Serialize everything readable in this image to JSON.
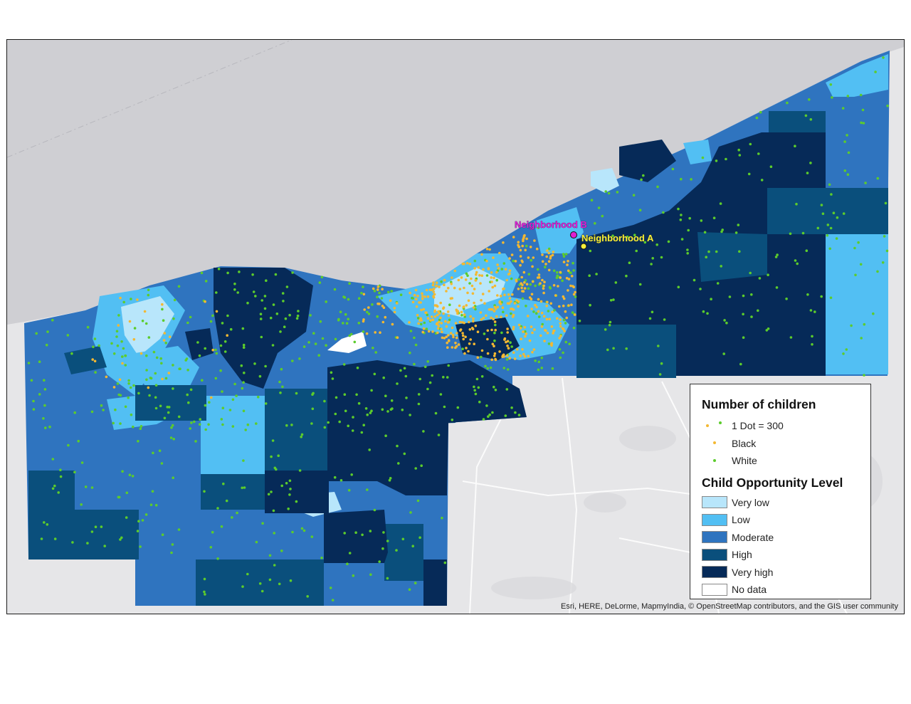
{
  "legend": {
    "children_title": "Number of children",
    "dot_scale": "1 Dot = 300",
    "dots": [
      {
        "name": "Black",
        "color": "#f3b832"
      },
      {
        "name": "White",
        "color": "#5ccc2c"
      }
    ],
    "opportunity_title": "Child Opportunity Level",
    "levels": [
      {
        "name": "Very low",
        "color": "#b8e6fb"
      },
      {
        "name": "Low",
        "color": "#52bff3"
      },
      {
        "name": "Moderate",
        "color": "#2f74bf"
      },
      {
        "name": "High",
        "color": "#0a4f7c"
      },
      {
        "name": "Very high",
        "color": "#062a58"
      },
      {
        "name": "No data",
        "color": "#ffffff"
      }
    ]
  },
  "markers": [
    {
      "label": "Neighborhood B",
      "color": "#e020d0"
    },
    {
      "label": "Neighborhood A",
      "color": "#f5ee3a"
    }
  ],
  "credit": "Esri, HERE, DeLorme, MapmyIndia, © OpenStreetMap contributors, and the GIS user community"
}
